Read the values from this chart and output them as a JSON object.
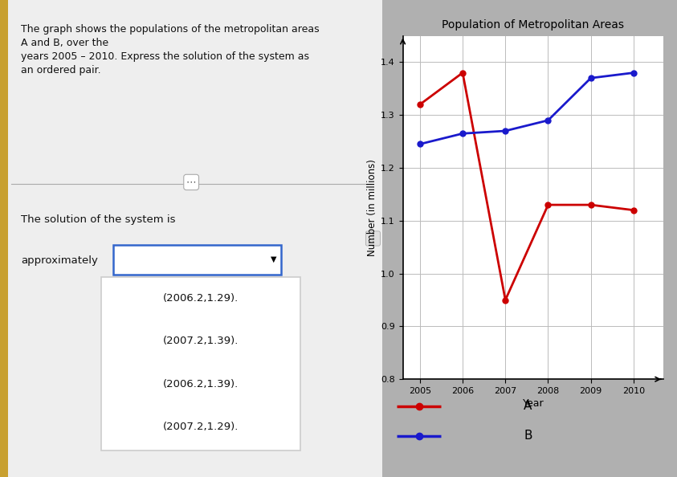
{
  "title": "Population of Metropolitan Areas",
  "xlabel": "Year",
  "ylabel": "Number (in millions)",
  "years": [
    2005,
    2006,
    2007,
    2008,
    2009,
    2010
  ],
  "series_A": {
    "label": "A",
    "color": "#cc0000",
    "values": [
      1.32,
      1.38,
      0.95,
      1.13,
      1.13,
      1.12
    ]
  },
  "series_B": {
    "label": "B",
    "color": "#1a1acc",
    "values": [
      1.245,
      1.265,
      1.27,
      1.29,
      1.37,
      1.38
    ]
  },
  "ylim": [
    0.8,
    1.45
  ],
  "yticks": [
    0.8,
    0.9,
    1.0,
    1.1,
    1.2,
    1.3,
    1.4
  ],
  "xlim": [
    2004.6,
    2010.7
  ],
  "left_text_lines": [
    "The graph shows the populations of the metropolitan areas",
    "A and B, over the",
    "years 2005 – 2010. Express the solution of the system as",
    "an ordered pair."
  ],
  "solution_text": "The solution of the system is",
  "approximately_text": "approximately",
  "dropdown_label": "▼",
  "dropdown_options": [
    "(2006.2,1.29).",
    "(2007.2,1.39).",
    "(2006.2,1.39).",
    "(2007.2,1.29)."
  ],
  "marker_size": 5,
  "line_width": 2.0,
  "fig_bg": "#b0b0b0",
  "left_bg": "#f0f0f0",
  "chart_bg": "#ffffff",
  "grid_color": "#bbbbbb",
  "yellow_strip": "#c8a030"
}
